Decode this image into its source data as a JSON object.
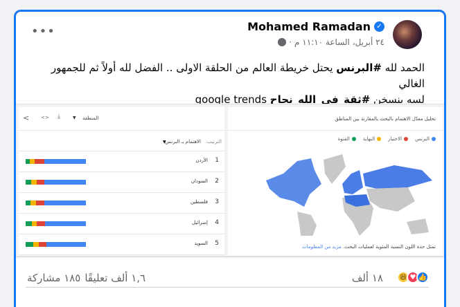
{
  "post": {
    "author": "Mohamed Ramadan",
    "timestamp": "٢٤ أبريل، الساعة ١١:١٠ م",
    "separator": "·",
    "text_line1_prefix": "الحمد لله ",
    "hashtag1": "#البرنس",
    "text_line1_rest": " يحتل خريطة العالم من الحلقة الاولى .. الفضل لله أولاً ثم للجمهور الغالي",
    "text_line2": "لسه بنسخن ",
    "text_line2_ltr": "google trends",
    "hashtag2": "#ثقة_في_الله_نجاح",
    "more_icon": "•••"
  },
  "trends": {
    "region_label": "المنطقة",
    "sort_label": "الترتيب:",
    "sort_value": "الاهتمام بـ البرنس",
    "map_title": "تحليل معدّل الاهتمام بالبحث بالمقارنة بين المناطق",
    "legend": [
      {
        "label": "البرنس",
        "color": "#4285f4"
      },
      {
        "label": "الاختيار",
        "color": "#db4437"
      },
      {
        "label": "النهاية",
        "color": "#f4b400"
      },
      {
        "label": "الفتوة",
        "color": "#0f9d58"
      }
    ],
    "rows": [
      {
        "rank": "1",
        "name": "الأردن",
        "shares": [
          6.5,
          8.4,
          15.7,
          69.4
        ]
      },
      {
        "rank": "2",
        "name": "السودان",
        "shares": [
          9.6,
          8.4,
          13.4,
          68.6
        ]
      },
      {
        "rank": "3",
        "name": "فلسطين",
        "shares": [
          8.4,
          8.4,
          14.2,
          69
        ]
      },
      {
        "rank": "4",
        "name": "إسرائيل",
        "shares": [
          10.7,
          8,
          13,
          68.3
        ]
      },
      {
        "rank": "5",
        "name": "السويد",
        "shares": [
          12.6,
          9.2,
          12.6,
          65.6
        ]
      }
    ],
    "note": "تمثل حدة اللون النسبة المئوية لعمليات البحث.",
    "note_link": "مزيد من المعلومات"
  },
  "footer": {
    "reaction_count": "١٨ ألف",
    "comments": "١,٦ ألف تعليقًا",
    "shares": "١٨٥ مشاركة"
  }
}
